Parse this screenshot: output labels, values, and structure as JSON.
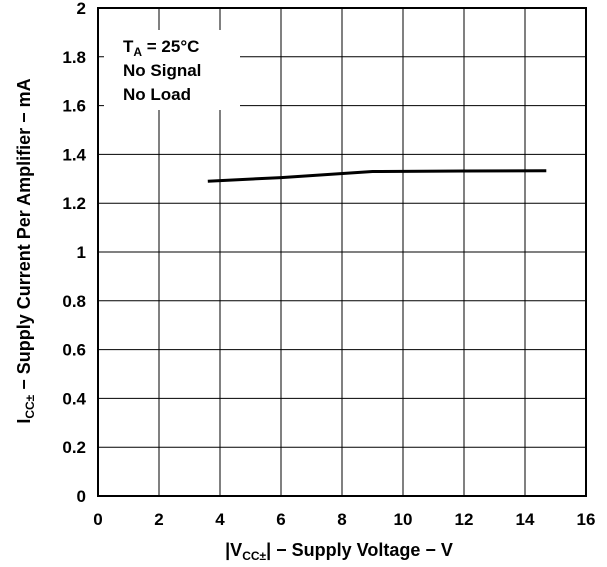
{
  "chart_data": {
    "type": "line",
    "xlabel": {
      "prefix": "|V",
      "sub": "CC±",
      "suffix": "| − Supply Voltage − V"
    },
    "ylabel": {
      "prefix": "I",
      "sub": "CC±",
      "suffix": "  − Supply Current Per Amplifier − mA"
    },
    "xlim": [
      0,
      16
    ],
    "ylim": [
      0,
      2
    ],
    "xticks": [
      "0",
      "2",
      "4",
      "6",
      "8",
      "10",
      "12",
      "14",
      "16"
    ],
    "yticks": [
      "0",
      "0.2",
      "0.4",
      "0.6",
      "0.8",
      "1",
      "1.2",
      "1.4",
      "1.6",
      "1.8",
      "2"
    ],
    "grid": true,
    "annotation": {
      "line1_prefix": "T",
      "line1_sub": "A",
      "line1_suffix": " = 25°C",
      "line2": "No Signal",
      "line3": "No Load"
    },
    "series": [
      {
        "x": [
          3.6,
          6,
          9,
          12,
          14.7
        ],
        "y": [
          1.29,
          1.305,
          1.33,
          1.332,
          1.333
        ],
        "color": "#000000"
      }
    ]
  }
}
